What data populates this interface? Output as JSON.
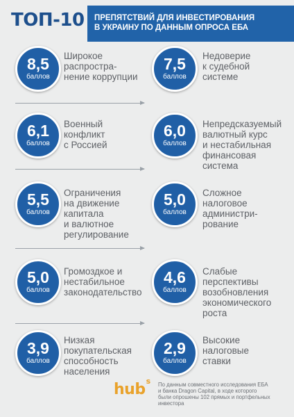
{
  "header": {
    "title": "ТОП-10",
    "subtitle_lines": [
      "препятствий для инвестирования",
      "в украину по данным опроса еба"
    ]
  },
  "unit_label": "баллов",
  "items": [
    {
      "score": "8,5",
      "lines": [
        "Широкое",
        "распростра-",
        "нение коррупции"
      ]
    },
    {
      "score": "7,5",
      "lines": [
        "Недоверие",
        "к судебной",
        "системе"
      ]
    },
    {
      "score": "6,1",
      "lines": [
        "Военный",
        "конфликт",
        "с Россией"
      ]
    },
    {
      "score": "6,0",
      "lines": [
        "Непредсказуемый",
        "валютный курс",
        "и нестабильная",
        "финансовая",
        "система"
      ]
    },
    {
      "score": "5,5",
      "lines": [
        "Ограничения",
        "на движение",
        "капитала",
        "и валютное",
        "регулирование"
      ]
    },
    {
      "score": "5,0",
      "lines": [
        "Сложное",
        "налоговое",
        "администри-",
        "рование"
      ]
    },
    {
      "score": "5,0",
      "lines": [
        "Громоздкое и",
        "нестабильное",
        "законодательство"
      ]
    },
    {
      "score": "4,6",
      "lines": [
        "Слабые",
        "перспективы",
        "возобновления",
        "экономического",
        "роста"
      ]
    },
    {
      "score": "3,9",
      "lines": [
        "Низкая",
        "покупательская",
        "способность",
        "населения"
      ]
    },
    {
      "score": "2,9",
      "lines": [
        "Высокие",
        "налоговые",
        "ставки"
      ]
    }
  ],
  "logo": {
    "text": "hub",
    "superscript": "s"
  },
  "footnote_lines": [
    "По данным совместного исследования ЕБА",
    "и банка Dragon Capital, в ходе которого",
    "были опрошены 102 прямых и портфельных",
    "инвестора"
  ],
  "colors": {
    "brand_blue": "#205fa6",
    "banner_blue": "#2163a9",
    "title_blue": "#1d4f8c",
    "text_gray": "#5e6166",
    "logo_orange": "#e9a22b",
    "background": "#eceded"
  }
}
